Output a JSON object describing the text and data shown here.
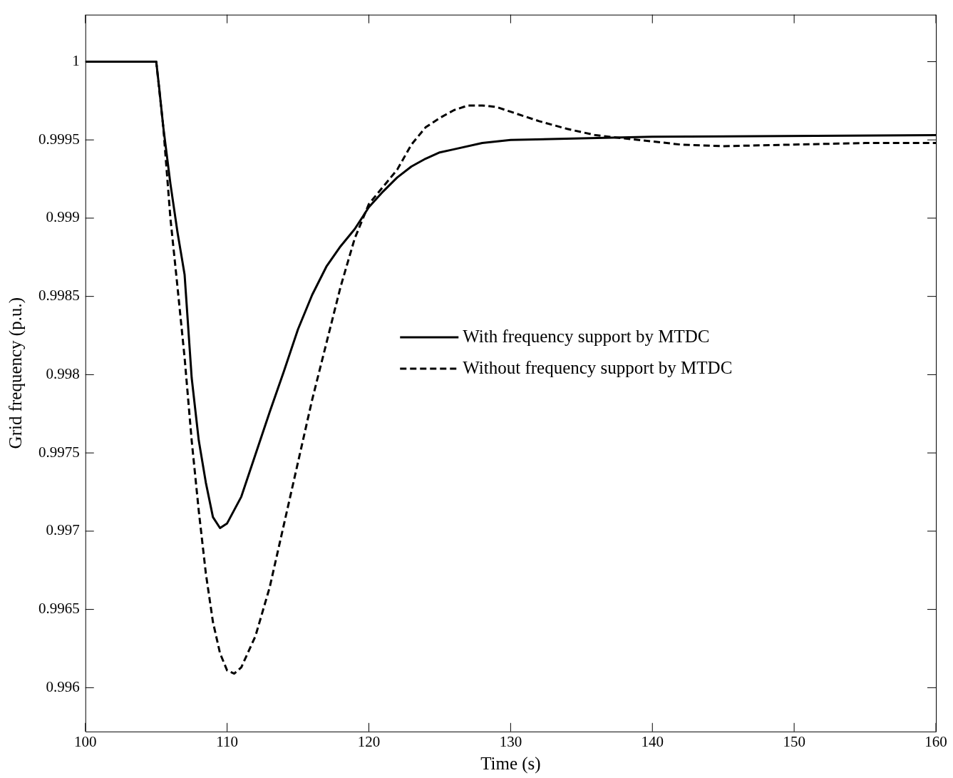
{
  "chart_data": {
    "type": "line",
    "xlabel": "Time (s)",
    "ylabel": "Grid frequency (p.u.)",
    "xlim": [
      100,
      160
    ],
    "xticks": [
      100,
      110,
      120,
      130,
      140,
      150,
      160
    ],
    "ylim": [
      0.99572,
      1.0003
    ],
    "yticks": [
      0.996,
      0.9965,
      0.997,
      0.9975,
      0.998,
      0.9985,
      0.999,
      0.9995,
      1
    ],
    "grid": false,
    "legend": "right",
    "marker": "none",
    "series": [
      {
        "name": "With frequency support by MTDC",
        "color": "#000000",
        "line_style": "solid",
        "x": [
          100,
          105,
          105.2,
          105.5,
          106,
          106.5,
          107,
          107.5,
          108,
          108.5,
          109,
          109.5,
          110,
          111,
          112,
          113,
          114,
          115,
          116,
          117,
          118,
          119,
          120,
          121,
          122,
          123,
          124,
          125,
          126,
          128,
          130,
          135,
          140,
          160
        ],
        "values": [
          1,
          1,
          0.99984,
          0.99958,
          0.99922,
          0.99891,
          0.99864,
          0.99798,
          0.99758,
          0.99731,
          0.99709,
          0.99702,
          0.99705,
          0.99722,
          0.99749,
          0.99776,
          0.99802,
          0.99829,
          0.99851,
          0.99869,
          0.99882,
          0.99893,
          0.99907,
          0.99917,
          0.99926,
          0.99933,
          0.99938,
          0.99942,
          0.99944,
          0.99948,
          0.9995,
          0.99951,
          0.99952,
          0.99953
        ]
      },
      {
        "name": "Without frequency support by MTDC",
        "color": "#000000",
        "line_style": "dashed",
        "x": [
          100,
          105,
          105.5,
          106,
          106.5,
          107,
          107.5,
          108,
          108.5,
          109,
          109.5,
          110,
          110.5,
          111,
          112,
          113,
          114,
          115,
          116,
          117,
          118,
          119,
          120,
          121,
          122,
          123,
          124,
          125,
          126,
          127,
          128,
          129,
          130,
          132,
          134,
          136,
          138,
          140,
          142,
          145,
          150,
          155,
          160
        ],
        "values": [
          1,
          1,
          0.99958,
          0.999,
          0.99856,
          0.99811,
          0.99758,
          0.99713,
          0.99673,
          0.99642,
          0.99622,
          0.99611,
          0.99609,
          0.99613,
          0.99633,
          0.99664,
          0.99704,
          0.99744,
          0.99784,
          0.9982,
          0.99856,
          0.99887,
          0.99909,
          0.9992,
          0.99931,
          0.99947,
          0.99958,
          0.99964,
          0.99969,
          0.99972,
          0.99972,
          0.99971,
          0.99968,
          0.99962,
          0.99957,
          0.99953,
          0.99951,
          0.99949,
          0.99947,
          0.99946,
          0.99947,
          0.99948,
          0.99948
        ]
      }
    ]
  }
}
